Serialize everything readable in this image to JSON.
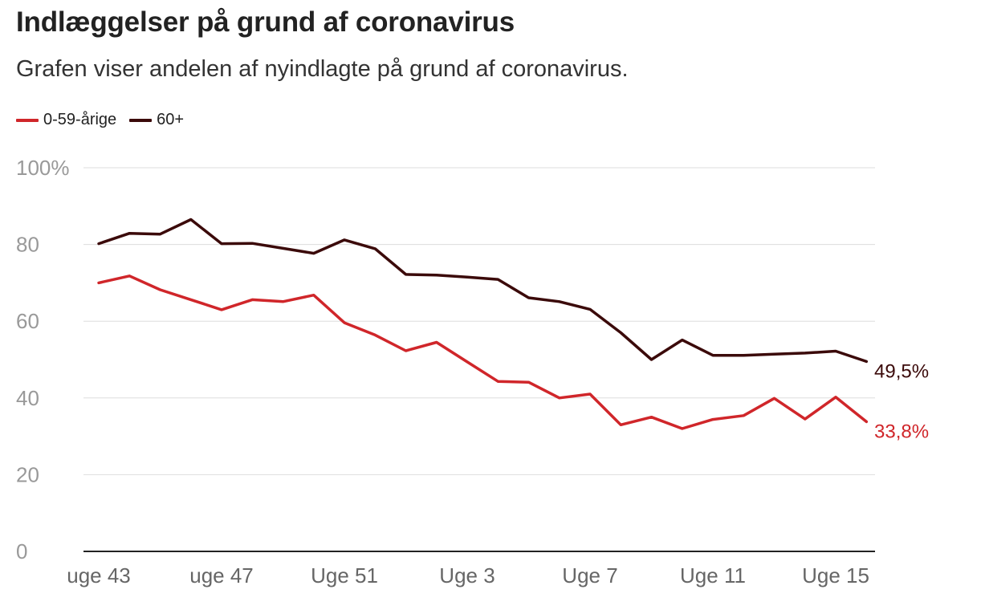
{
  "chart_data": {
    "type": "line",
    "title": "Indlæggelser på grund af coronavirus",
    "subtitle": "Grafen viser andelen af nyindlagte på grund af coronavirus.",
    "x": [
      43,
      44,
      45,
      46,
      47,
      48,
      49,
      50,
      51,
      52,
      53,
      1,
      2,
      3,
      4,
      5,
      6,
      7,
      8,
      9,
      10,
      11,
      12,
      13,
      14,
      15,
      16
    ],
    "x_tick_labels": [
      "uge 43",
      "uge 47",
      "Uge 51",
      "Uge 3",
      "Uge 7",
      "Uge 11",
      "Uge 15"
    ],
    "x_tick_positions": [
      0,
      4,
      8,
      12,
      16,
      20,
      24
    ],
    "series": [
      {
        "name": "0-59-årige",
        "color": "#d0262a",
        "values": [
          70,
          71.8,
          68.2,
          65.6,
          63,
          65.6,
          65.1,
          66.8,
          59.6,
          56.4,
          52.3,
          54.5,
          49.4,
          44.3,
          44.1,
          40,
          41,
          33,
          35,
          32,
          34.4,
          35.4,
          39.9,
          34.5,
          40.2,
          33.8,
          null
        ],
        "end_label": "33,8%"
      },
      {
        "name": "60+",
        "color": "#3b0a0a",
        "values": [
          80.2,
          82.9,
          82.7,
          86.5,
          80.2,
          80.3,
          79,
          77.7,
          81.2,
          78.9,
          72.2,
          72,
          71.5,
          70.9,
          66.1,
          65.1,
          63.1,
          57,
          50,
          55.1,
          51.1,
          51.1,
          51.4,
          51.7,
          52.2,
          49.5,
          null
        ],
        "end_label": "49,5%"
      }
    ],
    "y_ticks": [
      0,
      20,
      40,
      60,
      80,
      100
    ],
    "y_tick_labels": [
      "0",
      "20",
      "40",
      "60",
      "80",
      "100%"
    ],
    "ylim": [
      0,
      100
    ],
    "legend_position": "top-left",
    "grid": true,
    "xlabel": "",
    "ylabel": ""
  }
}
